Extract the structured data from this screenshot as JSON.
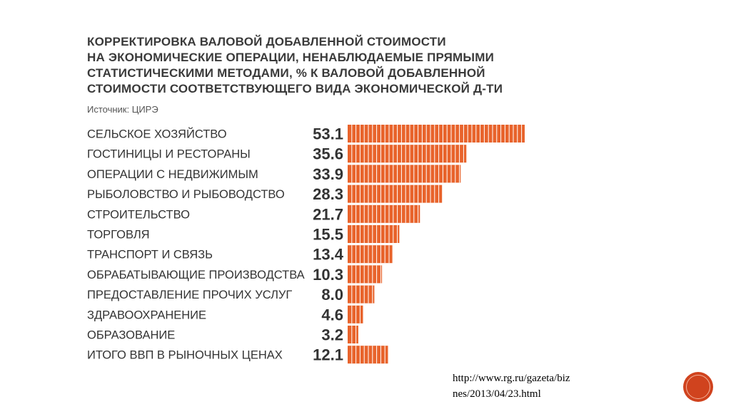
{
  "title_lines": [
    "КОРРЕКТИРОВКА ВАЛОВОЙ ДОБАВЛЕННОЙ СТОИМОСТИ",
    "НА ЭКОНОМИЧЕСКИЕ ОПЕРАЦИИ, НЕНАБЛЮДАЕМЫЕ ПРЯМЫМИ",
    "СТАТИСТИЧЕСКИМИ МЕТОДАМИ, % К ВАЛОВОЙ ДОБАВЛЕННОЙ",
    "СТОИМОСТИ СООТВЕТСТВУЮЩЕГО ВИДА ЭКОНОМИЧЕСКОЙ Д-ТИ"
  ],
  "source": "Источник: ЦИРЭ",
  "url_lines": [
    "http://www.rg.ru/gazeta/biz",
    "nes/2013/04/23.html"
  ],
  "colors": {
    "bar": "#e8632b",
    "segment_line": "#ffffff",
    "label": "#333333",
    "value": "#333333"
  },
  "chart_data": {
    "type": "bar",
    "orientation": "horizontal",
    "categories": [
      "СЕЛЬСКОЕ ХОЗЯЙСТВО",
      "ГОСТИНИЦЫ И РЕСТОРАНЫ",
      "ОПЕРАЦИИ С НЕДВИЖИМЫМ",
      "РЫБОЛОВСТВО И РЫБОВОДСТВО",
      "СТРОИТЕЛЬСТВО",
      "ТОРГОВЛЯ",
      "ТРАНСПОРТ И СВЯЗЬ",
      "ОБРАБАТЫВАЮЩИЕ ПРОИЗВОДСТВА",
      "ПРЕДОСТАВЛЕНИЕ ПРОЧИХ УСЛУГ",
      "ЗДРАВООХРАНЕНИЕ",
      "ОБРАЗОВАНИЕ",
      "ИТОГО ВВП В РЫНОЧНЫХ ЦЕНАХ"
    ],
    "values": [
      53.1,
      35.6,
      33.9,
      28.3,
      21.7,
      15.5,
      13.4,
      10.3,
      8.0,
      4.6,
      3.2,
      12.1
    ],
    "value_labels": [
      "53.1",
      "35.6",
      "33.9",
      "28.3",
      "21.7",
      "15.5",
      "13.4",
      "10.3",
      "8.0",
      "4.6",
      "3.2",
      "12.1"
    ],
    "title": "",
    "xlabel": "",
    "ylabel": "",
    "xlim": [
      0,
      53.1
    ],
    "grid": false,
    "legend": "none"
  }
}
